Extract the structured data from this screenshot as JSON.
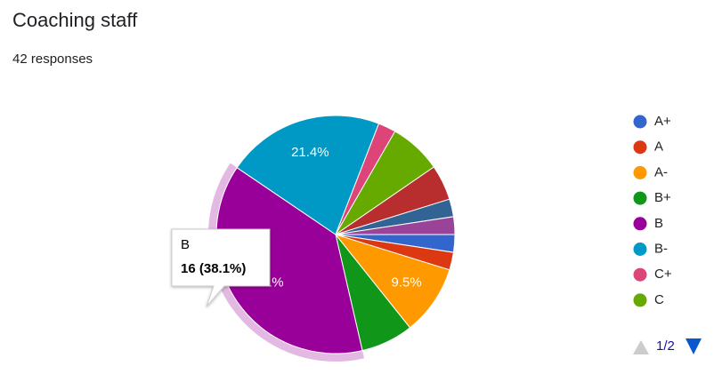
{
  "chart_data": {
    "type": "pie",
    "title": "Coaching staff",
    "subtitle": "42 responses",
    "categories": [
      "A+",
      "A",
      "A-",
      "B+",
      "B",
      "B-",
      "C+",
      "C",
      null,
      null,
      null
    ],
    "values": [
      2.4,
      2.4,
      9.5,
      7.1,
      38.1,
      21.4,
      2.4,
      7.1,
      4.8,
      2.4,
      2.4
    ],
    "value_labels": [
      null,
      null,
      "9.5%",
      null,
      "38.1%",
      "21.4%",
      null,
      null,
      null,
      null,
      null
    ],
    "colors": [
      "#3366cc",
      "#dc3912",
      "#ff9900",
      "#109618",
      "#990099",
      "#0099c6",
      "#dd4477",
      "#66aa00",
      "#b82e2e",
      "#316395",
      "#994499"
    ],
    "legend_count": 8,
    "highlight": 4,
    "tooltip": {
      "title": "B",
      "text": "16 (38.1%)"
    },
    "pager": "1/2"
  }
}
